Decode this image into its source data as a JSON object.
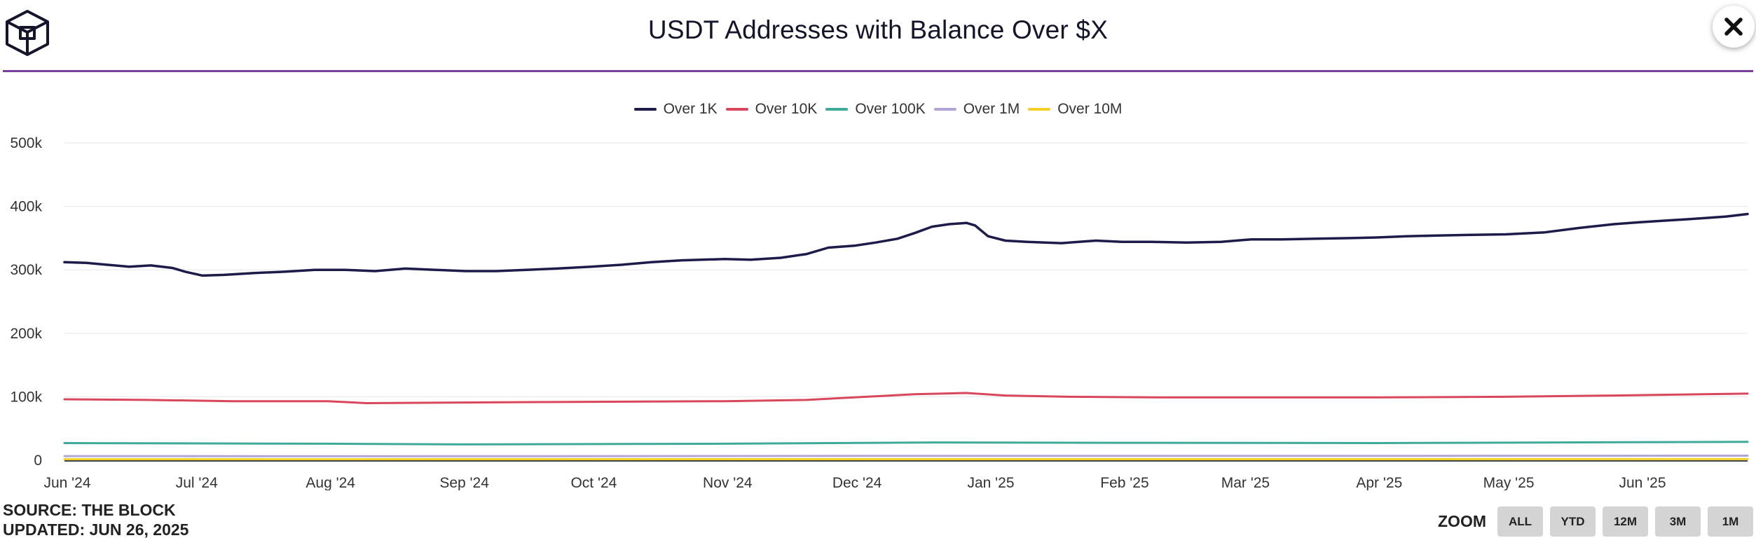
{
  "header": {
    "title": "USDT Addresses with Balance Over $X",
    "logo_icon": "the-block-cube-logo",
    "close_icon": "close-icon",
    "rule_color": "#7a3f9d"
  },
  "footer": {
    "source": "SOURCE: THE BLOCK",
    "updated": "UPDATED: JUN 26, 2025"
  },
  "zoom": {
    "label": "ZOOM",
    "buttons": [
      "ALL",
      "YTD",
      "12M",
      "3M",
      "1M"
    ]
  },
  "chart_data": {
    "type": "line",
    "title": "USDT Addresses with Balance Over $X",
    "x_type": "date",
    "x_range": [
      "2024-06-01",
      "2025-06-26"
    ],
    "x_ticks": [
      {
        "date": "2024-06-01",
        "label": "Jun '24"
      },
      {
        "date": "2024-07-01",
        "label": "Jul '24"
      },
      {
        "date": "2024-08-01",
        "label": "Aug '24"
      },
      {
        "date": "2024-09-01",
        "label": "Sep '24"
      },
      {
        "date": "2024-10-01",
        "label": "Oct '24"
      },
      {
        "date": "2024-11-01",
        "label": "Nov '24"
      },
      {
        "date": "2024-12-01",
        "label": "Dec '24"
      },
      {
        "date": "2025-01-01",
        "label": "Jan '25"
      },
      {
        "date": "2025-02-01",
        "label": "Feb '25"
      },
      {
        "date": "2025-03-01",
        "label": "Mar '25"
      },
      {
        "date": "2025-04-01",
        "label": "Apr '25"
      },
      {
        "date": "2025-05-01",
        "label": "May '25"
      },
      {
        "date": "2025-06-01",
        "label": "Jun '25"
      }
    ],
    "y_range": [
      0,
      500000
    ],
    "y_ticks": [
      {
        "value": 0,
        "label": "0"
      },
      {
        "value": 100000,
        "label": "100k"
      },
      {
        "value": 200000,
        "label": "200k"
      },
      {
        "value": 300000,
        "label": "300k"
      },
      {
        "value": 400000,
        "label": "400k"
      },
      {
        "value": 500000,
        "label": "500k"
      }
    ],
    "grid": true,
    "legend_position": "top-center",
    "series": [
      {
        "name": "Over 1K",
        "color": "#1d1b4a",
        "points": [
          [
            "2024-06-01",
            312000
          ],
          [
            "2024-06-06",
            311000
          ],
          [
            "2024-06-11",
            308000
          ],
          [
            "2024-06-16",
            305000
          ],
          [
            "2024-06-21",
            307000
          ],
          [
            "2024-06-26",
            303000
          ],
          [
            "2024-06-29",
            297000
          ],
          [
            "2024-07-03",
            291000
          ],
          [
            "2024-07-08",
            292000
          ],
          [
            "2024-07-15",
            295000
          ],
          [
            "2024-07-22",
            297000
          ],
          [
            "2024-07-29",
            300000
          ],
          [
            "2024-08-05",
            300000
          ],
          [
            "2024-08-12",
            298000
          ],
          [
            "2024-08-19",
            302000
          ],
          [
            "2024-08-26",
            300000
          ],
          [
            "2024-09-02",
            298000
          ],
          [
            "2024-09-09",
            298000
          ],
          [
            "2024-09-16",
            300000
          ],
          [
            "2024-09-23",
            302000
          ],
          [
            "2024-10-01",
            305000
          ],
          [
            "2024-10-08",
            308000
          ],
          [
            "2024-10-15",
            312000
          ],
          [
            "2024-10-22",
            315000
          ],
          [
            "2024-11-01",
            317000
          ],
          [
            "2024-11-07",
            316000
          ],
          [
            "2024-11-14",
            319000
          ],
          [
            "2024-11-20",
            325000
          ],
          [
            "2024-11-25",
            335000
          ],
          [
            "2024-12-01",
            338000
          ],
          [
            "2024-12-06",
            343000
          ],
          [
            "2024-12-11",
            349000
          ],
          [
            "2024-12-15",
            358000
          ],
          [
            "2024-12-19",
            368000
          ],
          [
            "2024-12-23",
            372000
          ],
          [
            "2024-12-27",
            374000
          ],
          [
            "2024-12-29",
            370000
          ],
          [
            "2025-01-01",
            353000
          ],
          [
            "2025-01-05",
            346000
          ],
          [
            "2025-01-10",
            344000
          ],
          [
            "2025-01-18",
            342000
          ],
          [
            "2025-01-26",
            346000
          ],
          [
            "2025-02-01",
            344000
          ],
          [
            "2025-02-08",
            344000
          ],
          [
            "2025-02-16",
            343000
          ],
          [
            "2025-02-24",
            344000
          ],
          [
            "2025-03-03",
            348000
          ],
          [
            "2025-03-10",
            348000
          ],
          [
            "2025-03-18",
            349000
          ],
          [
            "2025-03-26",
            350000
          ],
          [
            "2025-04-01",
            351000
          ],
          [
            "2025-04-08",
            353000
          ],
          [
            "2025-04-15",
            354000
          ],
          [
            "2025-04-22",
            355000
          ],
          [
            "2025-05-01",
            356000
          ],
          [
            "2025-05-10",
            359000
          ],
          [
            "2025-05-18",
            366000
          ],
          [
            "2025-05-26",
            372000
          ],
          [
            "2025-06-01",
            375000
          ],
          [
            "2025-06-08",
            378000
          ],
          [
            "2025-06-15",
            381000
          ],
          [
            "2025-06-21",
            384000
          ],
          [
            "2025-06-26",
            388000
          ]
        ]
      },
      {
        "name": "Over 10K",
        "color": "#d9475d",
        "points": [
          [
            "2024-06-01",
            96000
          ],
          [
            "2024-06-20",
            95000
          ],
          [
            "2024-07-10",
            93000
          ],
          [
            "2024-08-01",
            93000
          ],
          [
            "2024-08-10",
            90000
          ],
          [
            "2024-09-01",
            91000
          ],
          [
            "2024-10-01",
            92000
          ],
          [
            "2024-11-01",
            93000
          ],
          [
            "2024-11-20",
            95000
          ],
          [
            "2024-12-01",
            99000
          ],
          [
            "2024-12-15",
            104000
          ],
          [
            "2024-12-27",
            106000
          ],
          [
            "2025-01-05",
            102000
          ],
          [
            "2025-01-20",
            100000
          ],
          [
            "2025-02-10",
            99000
          ],
          [
            "2025-03-01",
            99000
          ],
          [
            "2025-04-01",
            99000
          ],
          [
            "2025-05-01",
            100000
          ],
          [
            "2025-05-26",
            102000
          ],
          [
            "2025-06-26",
            105000
          ]
        ]
      },
      {
        "name": "Over 100K",
        "color": "#3fa99a",
        "points": [
          [
            "2024-06-01",
            27000
          ],
          [
            "2024-08-01",
            26000
          ],
          [
            "2024-09-01",
            25000
          ],
          [
            "2024-11-01",
            26000
          ],
          [
            "2024-12-20",
            28000
          ],
          [
            "2025-02-01",
            27500
          ],
          [
            "2025-04-01",
            27000
          ],
          [
            "2025-06-26",
            29000
          ]
        ]
      },
      {
        "name": "Over 1M",
        "color": "#b2a5d6",
        "points": [
          [
            "2024-06-01",
            6500
          ],
          [
            "2024-09-01",
            6300
          ],
          [
            "2024-12-20",
            7000
          ],
          [
            "2025-03-01",
            6800
          ],
          [
            "2025-06-26",
            7200
          ]
        ]
      },
      {
        "name": "Over 10M",
        "color": "#f2d024",
        "points": [
          [
            "2024-06-01",
            1500
          ],
          [
            "2024-12-20",
            1700
          ],
          [
            "2025-06-26",
            1800
          ]
        ]
      }
    ]
  }
}
